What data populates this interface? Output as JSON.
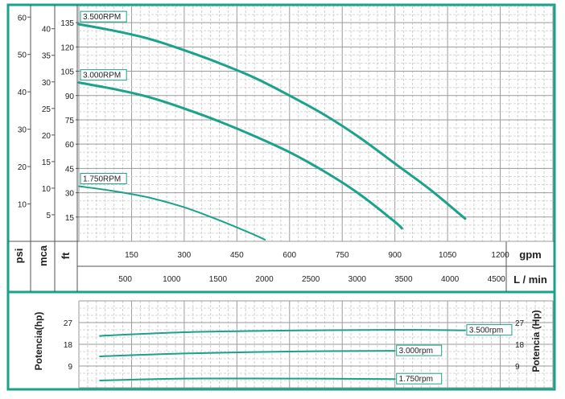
{
  "accent_color": "#1aa28a",
  "chart_data": [
    {
      "type": "line",
      "title": "",
      "xlabel": "gpm",
      "xlabel2": "L / min",
      "ylabel_axes": [
        "psi",
        "mca",
        "ft"
      ],
      "xlim_gpm": [
        0,
        1350
      ],
      "ylim_ft": [
        0,
        145
      ],
      "grid": true,
      "gpm_ticks": [
        "150",
        "300",
        "450",
        "600",
        "750",
        "900",
        "1050",
        "1200"
      ],
      "lmin_ticks": [
        "500",
        "1000",
        "1500",
        "2000",
        "2500",
        "3000",
        "3500",
        "4000",
        "4500"
      ],
      "ft_ticks": [
        "15",
        "30",
        "45",
        "60",
        "75",
        "90",
        "105",
        "120",
        "135"
      ],
      "mca_ticks": [
        "5",
        "10",
        "15",
        "20",
        "25",
        "30",
        "35",
        "40"
      ],
      "psi_ticks": [
        "10",
        "20",
        "30",
        "40",
        "50",
        "60"
      ],
      "series": [
        {
          "name": "3.500RPM",
          "x": [
            0,
            100,
            200,
            300,
            400,
            500,
            600,
            700,
            800,
            900,
            1000,
            1100
          ],
          "y": [
            134,
            130,
            125,
            118,
            110,
            101,
            90,
            78,
            64,
            48,
            32,
            14
          ]
        },
        {
          "name": "3.000RPM",
          "x": [
            0,
            100,
            200,
            300,
            400,
            500,
            600,
            700,
            800,
            900,
            920
          ],
          "y": [
            98,
            94,
            89,
            82,
            74,
            65,
            55,
            43,
            29,
            12,
            8
          ]
        },
        {
          "name": "1.750RPM",
          "x": [
            0,
            100,
            200,
            300,
            400,
            500,
            530
          ],
          "y": [
            34,
            31,
            27,
            21,
            13,
            4,
            1
          ]
        }
      ]
    },
    {
      "type": "line",
      "title": "",
      "ylabel": "Potencia(hp)",
      "ylabel_right": "Potencia (Hp)",
      "xlim_gpm": [
        0,
        1350
      ],
      "ylim": [
        0,
        36
      ],
      "grid": true,
      "y_ticks": [
        "9",
        "18",
        "27"
      ],
      "series": [
        {
          "name": "3.500rpm",
          "x": [
            60,
            300,
            600,
            900,
            1100
          ],
          "y": [
            21.5,
            23.0,
            23.7,
            24.0,
            23.8
          ]
        },
        {
          "name": "3.000rpm",
          "x": [
            60,
            300,
            600,
            900
          ],
          "y": [
            13,
            14.2,
            15.0,
            15.3
          ]
        },
        {
          "name": "1.750rpm",
          "x": [
            60,
            300,
            600,
            900
          ],
          "y": [
            3,
            3.8,
            3.8,
            3.6
          ]
        }
      ]
    }
  ]
}
